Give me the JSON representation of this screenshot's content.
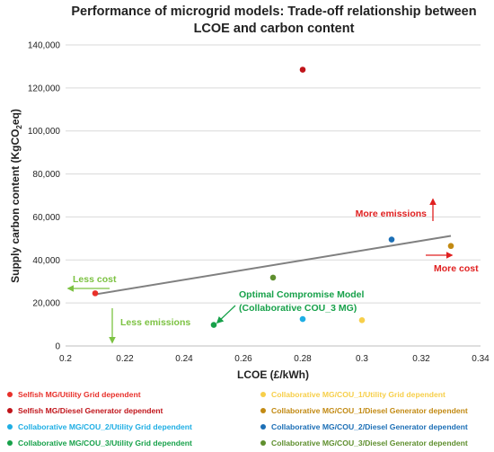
{
  "chart_data": {
    "type": "scatter",
    "title": "Performance of microgrid models: Trade-off relationship between LCOE and carbon content",
    "xlabel": "LCOE (£/kWh)",
    "ylabel_main": "Supply carbon content (KgCO",
    "ylabel_sub": "2",
    "ylabel_end": "eq)",
    "xlim": [
      0.2,
      0.34
    ],
    "ylim": [
      0,
      140000
    ],
    "xticks": [
      0.2,
      0.22,
      0.24,
      0.26,
      0.28,
      0.3,
      0.32,
      0.34
    ],
    "xtick_labels": [
      "0.2",
      "0.22",
      "0.24",
      "0.26",
      "0.28",
      "0.3",
      "0.32",
      "0.34"
    ],
    "yticks": [
      0,
      20000,
      40000,
      60000,
      80000,
      100000,
      120000,
      140000
    ],
    "ytick_labels": [
      "0",
      "20,000",
      "40,000",
      "60,000",
      "80,000",
      "100,000",
      "120,000",
      "140,000"
    ],
    "series": [
      {
        "name": "Selfish MG/Utility Grid dependent",
        "color": "#e8302a",
        "x": 0.21,
        "y": 24500
      },
      {
        "name": "Selfish MG/Diesel Generator dependent",
        "color": "#c0141a",
        "x": 0.28,
        "y": 128500
      },
      {
        "name": "Collaborative MG/COU_2/Utility Grid dependent",
        "color": "#1eaee4",
        "x": 0.28,
        "y": 12500
      },
      {
        "name": "Collaborative MG/COU_3/Utility Grid dependent",
        "color": "#17a14a",
        "x": 0.25,
        "y": 9800
      },
      {
        "name": "Collaborative MG/COU_1/Utility Grid dependent",
        "color": "#f7cf4a",
        "x": 0.3,
        "y": 12000
      },
      {
        "name": "Collaborative MG/COU_1/Diesel Generator dependent",
        "color": "#c28a13",
        "x": 0.33,
        "y": 46500
      },
      {
        "name": "Collaborative MG/COU_2/Diesel Generator dependent",
        "color": "#1c6fb6",
        "x": 0.31,
        "y": 49500
      },
      {
        "name": "Collaborative MG/COU_3/Diesel Generator dependent",
        "color": "#5f8f2e",
        "x": 0.27,
        "y": 31800
      }
    ],
    "trendline": {
      "color": "#808080",
      "x": [
        0.21,
        0.33
      ],
      "y": [
        24000,
        51200
      ]
    },
    "annotations": {
      "more_emissions": {
        "text": "More emissions",
        "color": "#e02020"
      },
      "more_cost": {
        "text": "More cost",
        "color": "#e02020"
      },
      "less_cost": {
        "text": "Less cost",
        "color": "#7cc242"
      },
      "less_emissions": {
        "text": "Less emissions",
        "color": "#7cc242"
      },
      "optimal_line1": {
        "text": "Optimal Compromise Model",
        "color": "#17a14a"
      },
      "optimal_line2": {
        "text": "(Collaborative COU_3 MG)",
        "color": "#17a14a"
      }
    },
    "legend": "bottom"
  }
}
